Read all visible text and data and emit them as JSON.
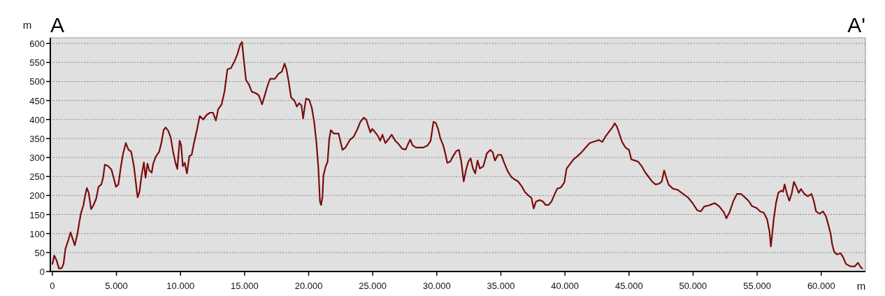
{
  "chart_data": {
    "type": "line",
    "x": [
      0,
      145,
      330,
      510,
      730,
      870,
      1020,
      1240,
      1420,
      1745,
      1960,
      2110,
      2240,
      2420,
      2545,
      2690,
      2835,
      3020,
      3200,
      3420,
      3600,
      3820,
      3960,
      4090,
      4330,
      4600,
      4780,
      4960,
      5150,
      5330,
      5510,
      5730,
      5930,
      6150,
      6360,
      6510,
      6650,
      6800,
      6960,
      7140,
      7270,
      7420,
      7560,
      7750,
      7870,
      8070,
      8330,
      8510,
      8690,
      8840,
      9050,
      9240,
      9420,
      9600,
      9750,
      9930,
      10050,
      10180,
      10330,
      10500,
      10690,
      10870,
      11050,
      11260,
      11500,
      11770,
      12040,
      12310,
      12530,
      12760,
      12940,
      13210,
      13430,
      13660,
      13930,
      14210,
      14440,
      14660,
      14800,
      14930,
      15110,
      15340,
      15560,
      15830,
      16100,
      16370,
      16550,
      16820,
      17000,
      17360,
      17640,
      17910,
      18120,
      18270,
      18450,
      18630,
      18900,
      19080,
      19260,
      19440,
      19570,
      19710,
      19800,
      20040,
      20250,
      20430,
      20610,
      20760,
      20880,
      20970,
      21080,
      21150,
      21330,
      21480,
      21600,
      21730,
      21970,
      22330,
      22640,
      22870,
      23230,
      23500,
      23770,
      24040,
      24310,
      24490,
      24670,
      24820,
      24950,
      25130,
      25400,
      25580,
      25760,
      25980,
      26210,
      26480,
      26760,
      27030,
      27300,
      27570,
      27750,
      27930,
      28110,
      28380,
      28930,
      29290,
      29520,
      29740,
      29920,
      30100,
      30280,
      30500,
      30640,
      30820,
      31050,
      31280,
      31520,
      31730,
      31910,
      32100,
      32280,
      32460,
      32640,
      32820,
      33000,
      33180,
      33360,
      33630,
      33910,
      34180,
      34360,
      34540,
      34770,
      35030,
      35260,
      35530,
      35810,
      36080,
      36340,
      36610,
      36880,
      37150,
      37380,
      37560,
      37740,
      38050,
      38280,
      38500,
      38720,
      38950,
      39190,
      39400,
      39680,
      39950,
      40130,
      40400,
      40670,
      40990,
      41300,
      41610,
      41930,
      42200,
      42470,
      42650,
      42920,
      43200,
      43470,
      43740,
      43880,
      44060,
      44240,
      44460,
      44730,
      45000,
      45180,
      45450,
      45720,
      45990,
      46260,
      46530,
      46800,
      47070,
      47340,
      47560,
      47740,
      47920,
      48100,
      48430,
      48790,
      49150,
      49600,
      49960,
      50330,
      50600,
      50870,
      51240,
      51690,
      52050,
      52420,
      52600,
      52870,
      53150,
      53420,
      53750,
      54050,
      54330,
      54600,
      54960,
      55240,
      55510,
      55780,
      55960,
      56070,
      56180,
      56290,
      56470,
      56650,
      56870,
      57020,
      57140,
      57330,
      57510,
      57690,
      57870,
      58050,
      58240,
      58420,
      58690,
      58960,
      59240,
      59420,
      59600,
      59870,
      60140,
      60360,
      60540,
      60730,
      60870,
      61020,
      61230,
      61510,
      61690,
      61930,
      62240,
      62600,
      62870,
      63090,
      63200
    ],
    "values": [
      20,
      42,
      29,
      8,
      9,
      20,
      60,
      82,
      103,
      69,
      100,
      131,
      155,
      174,
      198,
      220,
      207,
      164,
      174,
      192,
      223,
      229,
      247,
      281,
      278,
      269,
      247,
      223,
      229,
      272,
      309,
      338,
      321,
      315,
      278,
      235,
      195,
      210,
      253,
      287,
      247,
      284,
      266,
      260,
      284,
      302,
      315,
      339,
      373,
      379,
      370,
      352,
      315,
      287,
      270,
      344,
      332,
      277,
      286,
      258,
      304,
      307,
      338,
      369,
      409,
      400,
      412,
      418,
      418,
      397,
      427,
      440,
      473,
      532,
      535,
      553,
      572,
      597,
      604,
      560,
      504,
      492,
      473,
      470,
      464,
      440,
      461,
      492,
      507,
      507,
      520,
      526,
      547,
      532,
      498,
      458,
      449,
      434,
      443,
      437,
      403,
      437,
      455,
      452,
      430,
      394,
      338,
      271,
      184,
      175,
      197,
      252,
      277,
      289,
      347,
      372,
      363,
      363,
      320,
      326,
      347,
      354,
      372,
      394,
      405,
      400,
      381,
      366,
      375,
      369,
      357,
      344,
      360,
      338,
      347,
      360,
      344,
      335,
      323,
      321,
      335,
      347,
      332,
      326,
      326,
      332,
      344,
      394,
      391,
      375,
      350,
      332,
      314,
      286,
      289,
      304,
      317,
      320,
      289,
      237,
      267,
      289,
      298,
      271,
      258,
      292,
      271,
      277,
      311,
      320,
      314,
      292,
      307,
      307,
      286,
      264,
      249,
      242,
      237,
      225,
      209,
      200,
      194,
      166,
      184,
      188,
      184,
      175,
      175,
      184,
      203,
      218,
      221,
      234,
      271,
      283,
      295,
      304,
      314,
      326,
      338,
      341,
      344,
      346,
      341,
      357,
      369,
      381,
      390,
      381,
      363,
      341,
      326,
      320,
      295,
      292,
      289,
      277,
      261,
      249,
      237,
      229,
      231,
      237,
      266,
      246,
      228,
      218,
      215,
      206,
      195,
      180,
      161,
      158,
      171,
      174,
      180,
      171,
      155,
      140,
      158,
      186,
      204,
      204,
      195,
      186,
      172,
      167,
      158,
      155,
      137,
      106,
      66,
      100,
      137,
      180,
      207,
      213,
      210,
      229,
      204,
      186,
      204,
      236,
      223,
      207,
      217,
      204,
      198,
      204,
      186,
      158,
      152,
      158,
      146,
      125,
      100,
      69,
      51,
      45,
      48,
      39,
      20,
      14,
      13,
      23,
      11,
      8
    ],
    "color": "#7a0c0c",
    "xlim": [
      -160,
      63450
    ],
    "xticks": [
      0,
      {
        "value": 5000,
        "label": "5.000"
      },
      {
        "value": 10000,
        "label": "10.000"
      },
      {
        "value": 15000,
        "label": "15.000"
      },
      {
        "value": 20000,
        "label": "20.000"
      },
      {
        "value": 25000,
        "label": "25.000"
      },
      {
        "value": 30000,
        "label": "30.000"
      },
      {
        "value": 35000,
        "label": "35.000"
      },
      {
        "value": 40000,
        "label": "40.000"
      },
      {
        "value": 45000,
        "label": "45.000"
      },
      {
        "value": 50000,
        "label": "50.000"
      },
      {
        "value": 55000,
        "label": "55.000"
      },
      {
        "value": 60000,
        "label": "60.000"
      }
    ],
    "ylim": [
      0,
      615
    ],
    "yticks": [
      0,
      50,
      100,
      150,
      200,
      250,
      300,
      350,
      400,
      450,
      500,
      550,
      600
    ],
    "xlabel": "m",
    "ylabel": "m",
    "annotations": [
      "A",
      "A'"
    ],
    "grid": "y"
  }
}
